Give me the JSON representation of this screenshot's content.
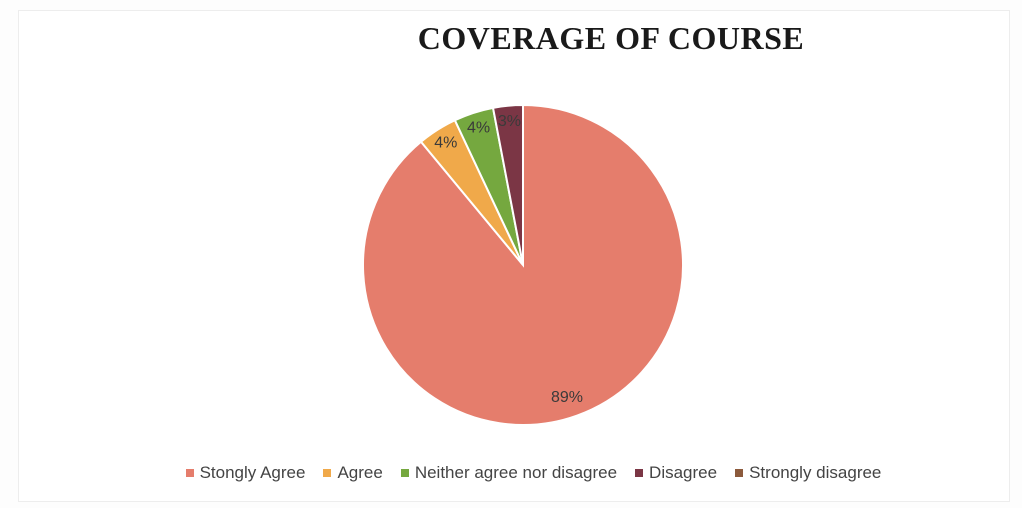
{
  "chart_data": {
    "type": "pie",
    "title": "COVERAGE OF COURSE",
    "categories": [
      "Stongly Agree",
      "Agree",
      "Neither agree nor disagree",
      "Disagree",
      "Strongly disagree"
    ],
    "values": [
      89,
      4,
      4,
      3,
      0
    ],
    "labels": [
      "89%",
      "4%",
      "4%",
      "3%",
      ""
    ],
    "colors": [
      "#e57d6c",
      "#f0a94a",
      "#75a83f",
      "#7b3645",
      "#8c5a3c"
    ],
    "start_angle_deg": 0,
    "direction": "counterclockwise",
    "legend_position": "bottom"
  }
}
